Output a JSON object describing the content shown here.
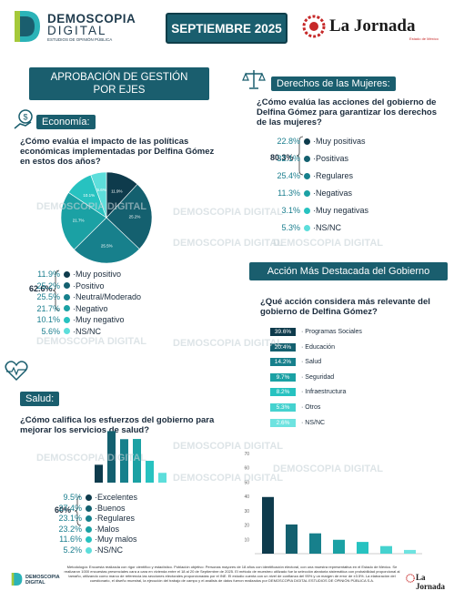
{
  "header": {
    "brand": "DEMOSCOPIA",
    "brand2": "DIGITAL",
    "brand_sub": "ESTUDIOS DE OPINIÓN PÚBLICA",
    "month": "SEPTIEMBRE 2025",
    "newspaper": "La Jornada",
    "newspaper_sub": "Estado de México"
  },
  "main_title": "APROBACIÓN DE GESTIÓN POR EJES",
  "economia": {
    "tag": "Economía:",
    "question": "¿Cómo evalúa el impacto de las políticas económicas implementadas por Delfina Gómez en estos dos años?",
    "bracket": "62.6%",
    "items": [
      {
        "pct": "11.9%",
        "label": "Muy positivo"
      },
      {
        "pct": "25.2%",
        "label": "Positivo"
      },
      {
        "pct": "25.5%",
        "label": "Neutral/Moderado"
      },
      {
        "pct": "21.7%",
        "label": "Negativo"
      },
      {
        "pct": "10.1%",
        "label": "Muy negativo"
      },
      {
        "pct": "5.6%",
        "label": "NS/NC"
      }
    ]
  },
  "derechos": {
    "tag": "Derechos de las Mujeres:",
    "question": "¿Cómo evalúa las acciones del gobierno de Delfina Gómez para garantizar los derechos de las mujeres?",
    "bracket": "80.3%",
    "items": [
      {
        "pct": "22.8%",
        "label": "Muy positivas"
      },
      {
        "pct": "32.1%",
        "label": "Positivas"
      },
      {
        "pct": "25.4%",
        "label": "Regulares"
      },
      {
        "pct": "11.3%",
        "label": "Negativas"
      },
      {
        "pct": "3.1%",
        "label": "Muy negativas"
      },
      {
        "pct": "5.3%",
        "label": "NS/NC"
      }
    ]
  },
  "accion": {
    "tag": "Acción Más Destacada del Gobierno",
    "question": "¿Qué acción considera más relevante del gobierno de Delfina Gómez?"
  },
  "salud": {
    "tag": "Salud:",
    "question": "¿Cómo califica los esfuerzos del gobierno para mejorar los servicios de salud?",
    "bracket": "60%",
    "items": [
      {
        "pct": "9.5%",
        "label": "Excelentes"
      },
      {
        "pct": "27.4%",
        "label": "Buenos"
      },
      {
        "pct": "23.1%",
        "label": "Regulares"
      },
      {
        "pct": "23.2%",
        "label": "Malos"
      },
      {
        "pct": "11.6%",
        "label": "Muy malos"
      },
      {
        "pct": "5.2%",
        "label": "NS/NC"
      }
    ]
  },
  "chart_data": [
    {
      "type": "pie",
      "title": "",
      "categories": [
        "Muy positivo",
        "Positivo",
        "Neutral/Moderado",
        "Negativo",
        "Muy negativo",
        "NS/NC"
      ],
      "values": [
        11.9,
        25.2,
        25.5,
        21.7,
        10.1,
        5.6
      ],
      "data_labels": [
        "11.9%",
        "25.2%",
        "25.5%",
        "21.7%",
        "10.1%",
        "5.6%"
      ],
      "colors": [
        "#0e3b4c",
        "#14606f",
        "#17808c",
        "#1ba1a4",
        "#27c2c0",
        "#5ddedb"
      ]
    },
    {
      "type": "bar",
      "title": "",
      "categories": [
        "Excelentes",
        "Buenos",
        "Regulares",
        "Malos",
        "Muy malos",
        "NS/NC"
      ],
      "values": [
        9.5,
        27.4,
        23.1,
        23.2,
        11.6,
        5.2
      ],
      "colors": [
        "#0e3b4c",
        "#14606f",
        "#17808c",
        "#1ba1a4",
        "#27c2c0",
        "#5ddedb"
      ]
    },
    {
      "type": "bar",
      "title": "",
      "orientation": "horizontal",
      "categories": [
        "Programas Sociales",
        "Educación",
        "Salud",
        "Seguridad",
        "Infraestructura",
        "Otros",
        "NS/NC"
      ],
      "values": [
        39.6,
        20.4,
        14.2,
        9.7,
        8.2,
        5.3,
        2.6
      ],
      "data_labels": [
        "39.6%",
        "20.4%",
        "14.2%",
        "9.7%",
        "8.2%",
        "5.3%",
        "2.6%"
      ],
      "colors": [
        "#0e3b4c",
        "#14606f",
        "#17808c",
        "#1ba1a4",
        "#27c2c0",
        "#45d2cf",
        "#6ee3e0"
      ]
    },
    {
      "type": "bar",
      "title": "",
      "categories": [
        "Programas Sociales",
        "Educación",
        "Salud",
        "Seguridad",
        "Infraestructura",
        "Otros",
        "NS/NC"
      ],
      "values": [
        39.6,
        20.4,
        14.2,
        9.7,
        8.2,
        5.3,
        2.6
      ],
      "yticks": [
        10,
        20,
        30,
        40,
        50,
        60,
        70
      ],
      "ylim": [
        0,
        70
      ],
      "colors": [
        "#0e3b4c",
        "#14606f",
        "#17808c",
        "#1ba1a4",
        "#27c2c0",
        "#45d2cf",
        "#6ee3e0"
      ]
    }
  ],
  "watermark": "DEMOSCOPIA DIGITAL",
  "footer": {
    "text": "Metodología: Encuesta realizada con rigor científico y estadístico. Población objetivo: Personas mayores de 18 años con identificación electoral, con una muestra representativa en el Estado de México. Se realizaron 1000 encuestas presenciales cara a cara en vivienda entre el 18 al 20 de Septiembre de 2025. El método de muestreo utilizado fue la selección aleatoria sistemática con probabilidad proporcional al tamaño, utilizando como marco de referencia las secciones electorales proporcionadas por el INE. El estudio cuenta con un nivel de confianza del 95% y un margen de error de ±3.5%. La elaboración del cuestionario, el diseño muestral, la ejecución del trabajo de campo y el análisis de datos fueron realizados por DEMOSCOPIA DIGITAL ESTUDIOS DE OPINIÓN PÚBLICA S.A."
  }
}
